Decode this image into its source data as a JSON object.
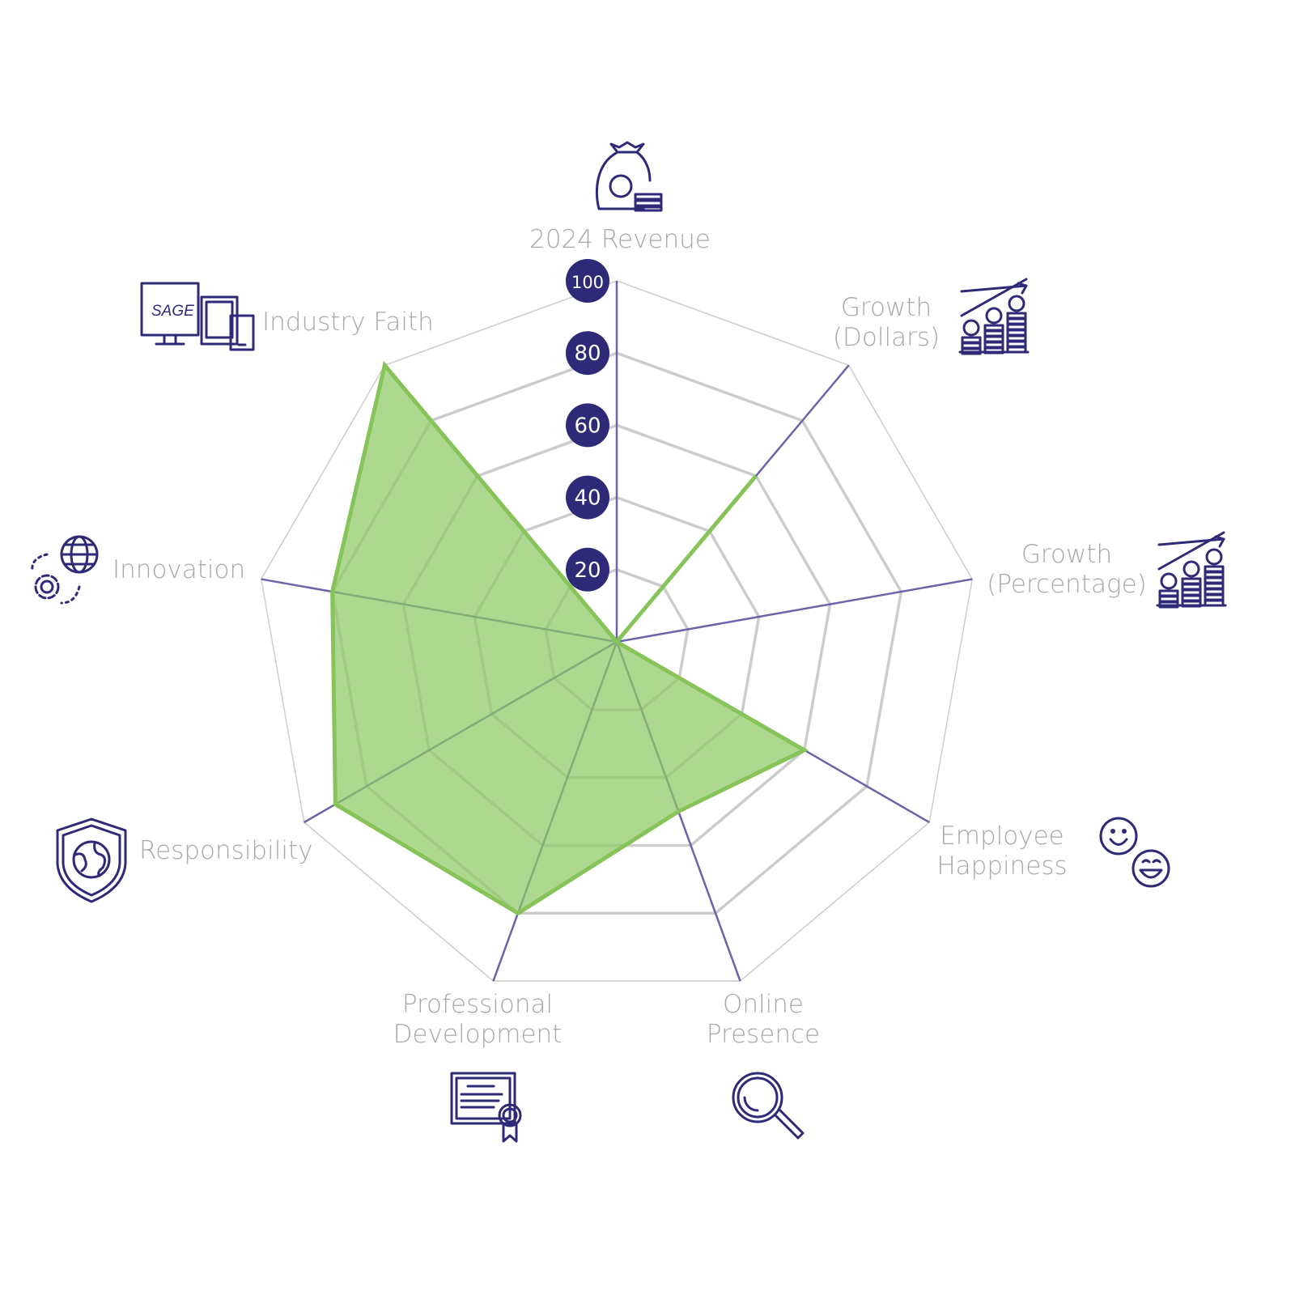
{
  "chart_data": {
    "type": "radar",
    "title": "",
    "axes": [
      "2024 Revenue",
      "Growth (Dollars)",
      "Growth (Percentage)",
      "Employee Happiness",
      "Online Presence",
      "Professional Development",
      "Responsibility",
      "Innovation",
      "Industry Faith"
    ],
    "axis_label_lines": [
      [
        "2024 Revenue"
      ],
      [
        "Growth",
        "(Dollars)"
      ],
      [
        "Growth",
        "(Percentage)"
      ],
      [
        "Employee",
        "Happiness"
      ],
      [
        "Online",
        "Presence"
      ],
      [
        "Professional",
        "Development"
      ],
      [
        "Responsibility"
      ],
      [
        "Innovation"
      ],
      [
        "Industry Faith"
      ]
    ],
    "axis_icons": [
      "money-bag-icon",
      "coin-stack-growth-icon",
      "coin-stack-growth-icon",
      "smiley-faces-icon",
      "magnifier-icon",
      "certificate-icon",
      "shield-globe-icon",
      "globe-gear-icon",
      "devices-icon"
    ],
    "values": [
      0,
      60,
      0,
      60,
      50,
      80,
      90,
      80,
      100
    ],
    "rlim": [
      0,
      100
    ],
    "ticks": [
      "20",
      "40",
      "60",
      "80",
      "100"
    ],
    "tick_values": [
      20,
      40,
      60,
      80,
      100
    ],
    "grid": true,
    "colors": {
      "fill": "#8fc865",
      "line": "#86c45a",
      "axis": "#6a64a8",
      "grid": "#cccccc",
      "badge": "#2e2a78",
      "label": "#a8a8a8",
      "icon": "#2e2a78"
    }
  }
}
